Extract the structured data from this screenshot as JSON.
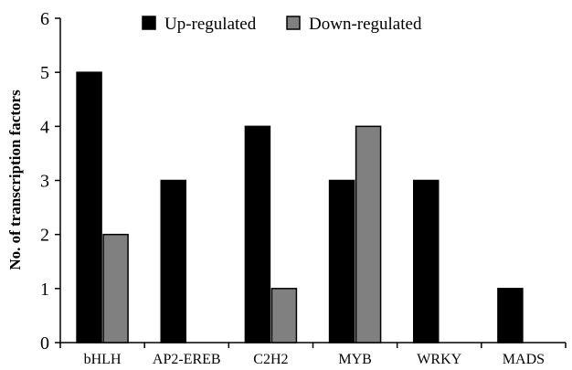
{
  "chart_data": {
    "type": "bar",
    "categories": [
      "bHLH",
      "AP2-EREB",
      "C2H2",
      "MYB",
      "WRKY",
      "MADS"
    ],
    "series": [
      {
        "name": "Up-regulated",
        "values": [
          5,
          3,
          4,
          3,
          3,
          1
        ],
        "color": "#000000"
      },
      {
        "name": "Down-regulated",
        "values": [
          2,
          0,
          1,
          4,
          0,
          0
        ],
        "color": "#808080"
      }
    ],
    "title": "",
    "xlabel": "",
    "ylabel": "No. of transcription factors",
    "ylim": [
      0,
      6
    ],
    "yticks": [
      "0",
      "1",
      "2",
      "3",
      "4",
      "5",
      "6"
    ],
    "grid": false,
    "legend": "top"
  }
}
